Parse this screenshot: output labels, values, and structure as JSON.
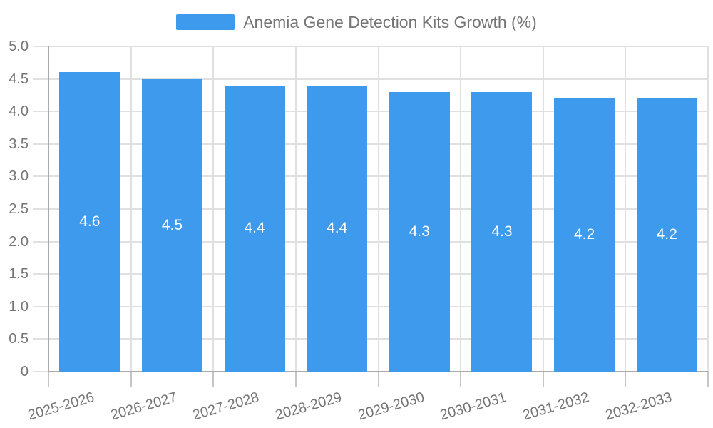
{
  "chart_data": {
    "type": "bar",
    "title": "Anemia Gene Detection Kits Growth (%)",
    "legend": {
      "label": "Anemia Gene Detection Kits Growth (%)",
      "position": "top-center"
    },
    "categories": [
      "2025-2026",
      "2026-2027",
      "2027-2028",
      "2028-2029",
      "2029-2030",
      "2030-2031",
      "2031-2032",
      "2032-2033"
    ],
    "series": [
      {
        "name": "Anemia Gene Detection Kits Growth (%)",
        "values": [
          4.6,
          4.5,
          4.4,
          4.4,
          4.3,
          4.3,
          4.2,
          4.2
        ]
      }
    ],
    "bar_value_labels": [
      "4.6",
      "4.5",
      "4.4",
      "4.4",
      "4.3",
      "4.3",
      "4.2",
      "4.2"
    ],
    "xlabel": "",
    "ylabel": "",
    "ylim": [
      0,
      5
    ],
    "ytick_step": 0.5,
    "ytick_labels": [
      "0",
      "0.5",
      "1.0",
      "1.5",
      "2.0",
      "2.5",
      "3.0",
      "3.5",
      "4.0",
      "4.5",
      "5.0"
    ],
    "grid": true,
    "legend_visible": true,
    "colors": {
      "bar": "#3D9AED",
      "bar_label": "#FFFFFF",
      "axis_text": "#757575",
      "grid_line": "#E0E0E0",
      "axis_line": "#AAAAAA",
      "tick_line": "#C6C6C6",
      "background": "#FFFFFF"
    }
  }
}
